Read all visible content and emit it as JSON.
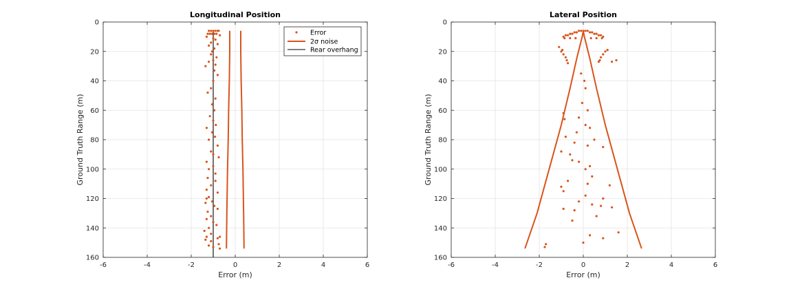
{
  "chart_data": [
    {
      "type": "scatter",
      "title": "Longitudinal Position",
      "xlabel": "Error (m)",
      "ylabel": "Ground Truth Range (m)",
      "xlim": [
        -6,
        6
      ],
      "ylim": [
        0,
        160
      ],
      "y_reversed": true,
      "xticks": [
        "-6",
        "-4",
        "-2",
        "0",
        "2",
        "4",
        "6"
      ],
      "yticks": [
        "0",
        "20",
        "40",
        "60",
        "80",
        "100",
        "120",
        "140",
        "160"
      ],
      "grid": true,
      "legend_position": "top-right",
      "legend": [
        {
          "label": "Error",
          "kind": "dots",
          "color": "#D95319"
        },
        {
          "label": "2σ noise",
          "kind": "line",
          "color": "#D95319"
        },
        {
          "label": "Rear overhang",
          "kind": "line",
          "color": "#000000"
        }
      ],
      "series": [
        {
          "name": "Error",
          "kind": "scatter",
          "color": "#D95319",
          "x": [
            -1.2,
            -1.1,
            -1.0,
            -0.9,
            -0.8,
            -0.75,
            -1.15,
            -1.05,
            -0.95,
            -0.85,
            -1.25,
            -0.7,
            -1.3,
            -1.0,
            -0.9,
            -1.1,
            -0.8,
            -1.2,
            -0.95,
            -1.05,
            -1.1,
            -0.85,
            -1.0,
            -1.2,
            -0.9,
            -1.35,
            -0.95,
            -0.8,
            -1.0,
            -1.1,
            -1.25,
            -0.9,
            -1.05,
            -0.95,
            -1.15,
            -1.0,
            -0.88,
            -1.3,
            -1.05,
            -0.92,
            -1.2,
            -0.8,
            -1.1,
            -1.0,
            -0.75,
            -1.3,
            -1.0,
            -1.2,
            -0.9,
            -1.25,
            -0.9,
            -1.1,
            -1.3,
            -0.8,
            -1.2,
            -1.3,
            -1.05,
            -1.35,
            -0.95,
            -0.8,
            -1.25,
            -1.1,
            -1.3,
            -1.0,
            -0.85,
            -1.2,
            -1.4,
            -1.1,
            -0.7,
            -1.3,
            -0.8,
            -1.35,
            -1.1,
            -0.75,
            -1.2,
            -1.0,
            -0.7
          ],
          "y": [
            6,
            6,
            6,
            6,
            6,
            6,
            8,
            8,
            8,
            8,
            8,
            9,
            10,
            11,
            12,
            14,
            15,
            16,
            18,
            20,
            22,
            24,
            26,
            27,
            29,
            30,
            33,
            36,
            40,
            45,
            48,
            52,
            56,
            60,
            64,
            67,
            70,
            72,
            75,
            78,
            80,
            84,
            88,
            90,
            92,
            95,
            98,
            100,
            103,
            106,
            108,
            111,
            114,
            116,
            119,
            120,
            122,
            123,
            125,
            127,
            129,
            132,
            134,
            136,
            138,
            140,
            142,
            144,
            146,
            146,
            147,
            148,
            149,
            151,
            152,
            153,
            154
          ]
        },
        {
          "name": "2σ noise",
          "kind": "line",
          "color": "#D95319",
          "x": [
            -0.25,
            -0.25,
            -0.27,
            -0.3,
            -0.32,
            -0.35,
            -0.38,
            -0.4
          ],
          "y": [
            6,
            20,
            40,
            60,
            80,
            100,
            130,
            154
          ]
        },
        {
          "name": "2σ noise",
          "kind": "line",
          "color": "#D95319",
          "x": [
            0.25,
            0.25,
            0.27,
            0.3,
            0.32,
            0.35,
            0.38,
            0.4
          ],
          "y": [
            6,
            20,
            40,
            60,
            80,
            100,
            130,
            154
          ]
        },
        {
          "name": "Rear overhang",
          "kind": "line",
          "color": "#000000",
          "x": [
            -1.0,
            -1.0
          ],
          "y": [
            6,
            160
          ]
        }
      ]
    },
    {
      "type": "scatter",
      "title": "Lateral Position",
      "xlabel": "Error (m)",
      "ylabel": "Ground Truth Range (m)",
      "xlim": [
        -6,
        6
      ],
      "ylim": [
        0,
        160
      ],
      "y_reversed": true,
      "xticks": [
        "-6",
        "-4",
        "-2",
        "0",
        "2",
        "4",
        "6"
      ],
      "yticks": [
        "0",
        "20",
        "40",
        "60",
        "80",
        "100",
        "120",
        "140",
        "160"
      ],
      "grid": true,
      "series": [
        {
          "name": "Error",
          "kind": "scatter",
          "color": "#D95319",
          "x": [
            -0.9,
            -0.8,
            -0.7,
            -0.6,
            -0.5,
            -0.4,
            -0.3,
            -0.2,
            -0.1,
            0.0,
            0.1,
            0.2,
            0.3,
            0.4,
            0.5,
            0.6,
            0.7,
            0.8,
            0.9,
            -0.85,
            -0.6,
            -0.35,
            0.35,
            0.6,
            0.85,
            -1.0,
            -0.9,
            -0.8,
            -0.7,
            0.7,
            0.8,
            0.9,
            1.0,
            -1.1,
            -0.95,
            -0.75,
            0.75,
            1.1,
            1.3,
            1.5,
            -0.1,
            0.05,
            0.1,
            -0.05,
            0.2,
            -0.2,
            -0.9,
            -0.85,
            0.1,
            0.3,
            -0.3,
            -0.8,
            -0.4,
            0.2,
            0.5,
            0.9,
            -0.6,
            -0.2,
            0.1,
            0.3,
            -0.5,
            -1.0,
            0.4,
            -0.7,
            0.2,
            -1.0,
            1.2,
            -0.9,
            0.1,
            0.9,
            -0.2,
            0.4,
            -0.9,
            0.8,
            -0.4,
            1.3,
            0.6,
            -0.5,
            1.6,
            0.3,
            -1.7,
            0.9,
            -1.75,
            0.0
          ],
          "y": [
            10,
            9,
            9,
            8,
            8,
            7,
            7,
            6,
            6,
            6,
            6,
            6,
            7,
            7,
            8,
            8,
            9,
            9,
            10,
            11,
            11,
            11,
            11,
            11,
            11,
            20,
            22,
            24,
            28,
            27,
            24,
            22,
            20,
            17,
            19,
            26,
            26,
            19,
            27,
            26,
            35,
            40,
            45,
            55,
            60,
            65,
            62,
            66,
            70,
            72,
            75,
            78,
            82,
            84,
            80,
            85,
            90,
            95,
            100,
            98,
            94,
            88,
            105,
            108,
            110,
            112,
            111,
            115,
            118,
            120,
            122,
            124,
            127,
            125,
            128,
            126,
            132,
            135,
            143,
            145,
            151,
            147,
            153,
            150
          ]
        },
        {
          "name": "2σ noise",
          "kind": "line",
          "color": "#D95319",
          "x": [
            -2.65,
            -2.1,
            -1.55,
            -1.0,
            -0.6,
            -0.3,
            -0.05,
            0.0
          ],
          "y": [
            154,
            130,
            100,
            70,
            45,
            25,
            10,
            6
          ]
        },
        {
          "name": "2σ noise",
          "kind": "line",
          "color": "#D95319",
          "x": [
            2.65,
            2.1,
            1.55,
            1.0,
            0.6,
            0.3,
            0.05,
            0.0
          ],
          "y": [
            154,
            130,
            100,
            70,
            45,
            25,
            10,
            6
          ]
        }
      ]
    }
  ]
}
